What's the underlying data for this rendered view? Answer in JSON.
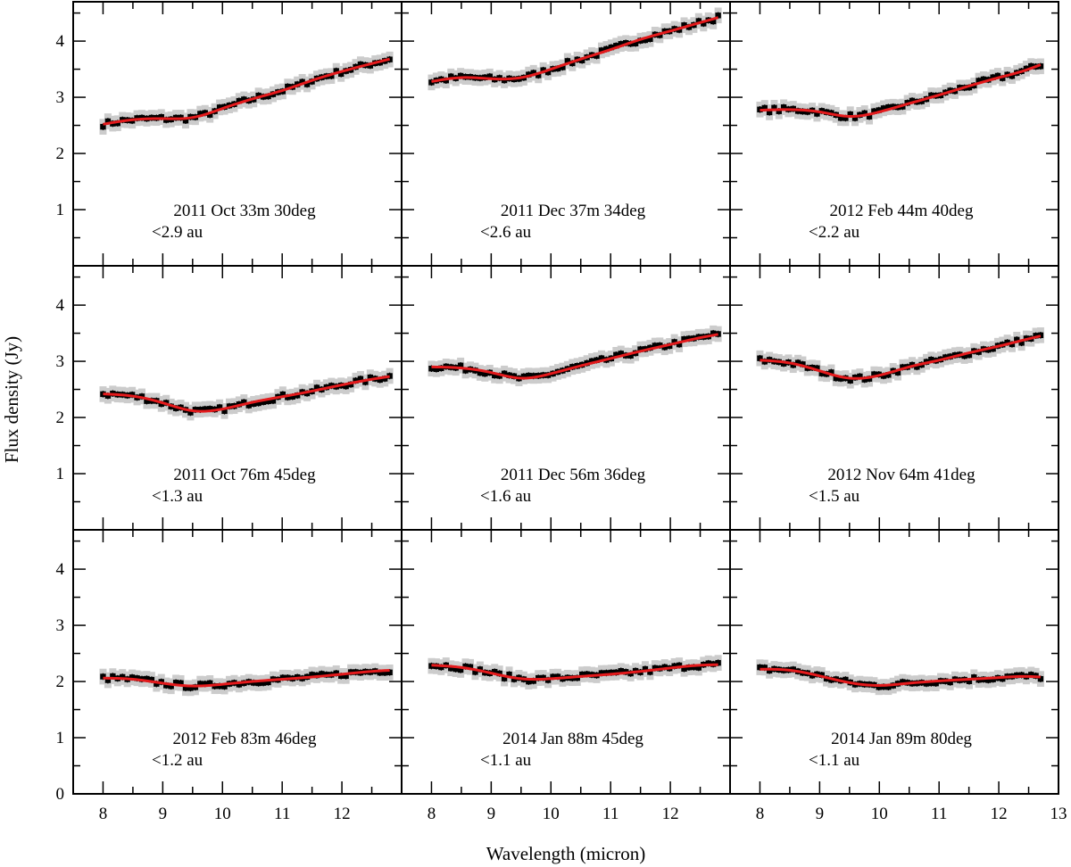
{
  "chart_data": {
    "type": "line",
    "xlabel": "Wavelength (micron)",
    "ylabel": "Flux density (Jy)",
    "xlim": [
      7.5,
      13.0
    ],
    "ylim": [
      0,
      4.7
    ],
    "x_ticks": [
      "8",
      "9",
      "10",
      "11",
      "12",
      "13"
    ],
    "y_ticks": [
      "0",
      "1",
      "2",
      "3",
      "4"
    ],
    "colors": {
      "model": "#e41a1c",
      "data": "#000000",
      "error_band": "#cccccc"
    },
    "panels": [
      {
        "title": "2011 Oct 33m 30deg",
        "limit": "<2.9 au",
        "model_x": [
          8.0,
          8.5,
          9.0,
          9.5,
          10.0,
          10.5,
          11.0,
          11.5,
          12.0,
          12.5,
          12.8
        ],
        "model_y": [
          2.52,
          2.6,
          2.62,
          2.64,
          2.8,
          2.97,
          3.12,
          3.3,
          3.46,
          3.6,
          3.68
        ]
      },
      {
        "title": "2011 Dec 37m 34deg",
        "limit": "<2.6 au",
        "model_x": [
          8.0,
          8.5,
          9.0,
          9.5,
          10.0,
          10.5,
          11.0,
          11.5,
          12.0,
          12.5,
          12.8
        ],
        "model_y": [
          3.28,
          3.35,
          3.33,
          3.35,
          3.5,
          3.68,
          3.85,
          4.03,
          4.18,
          4.33,
          4.42
        ]
      },
      {
        "title": "2012 Feb 44m 40deg",
        "limit": "<2.2 au",
        "model_x": [
          8.0,
          8.5,
          9.0,
          9.5,
          10.0,
          10.5,
          11.0,
          11.5,
          12.0,
          12.5,
          12.7
        ],
        "model_y": [
          2.77,
          2.78,
          2.74,
          2.66,
          2.74,
          2.89,
          3.04,
          3.2,
          3.35,
          3.5,
          3.58
        ]
      },
      {
        "title": "2011 Oct 76m 45deg",
        "limit": "<1.3 au",
        "model_x": [
          8.0,
          8.5,
          9.0,
          9.5,
          10.0,
          10.5,
          11.0,
          11.5,
          12.0,
          12.5,
          12.8
        ],
        "model_y": [
          2.42,
          2.38,
          2.26,
          2.12,
          2.15,
          2.27,
          2.37,
          2.47,
          2.58,
          2.68,
          2.73
        ]
      },
      {
        "title": "2011 Dec 56m 36deg",
        "limit": "<1.6 au",
        "model_x": [
          8.0,
          8.5,
          9.0,
          9.5,
          10.0,
          10.5,
          11.0,
          11.5,
          12.0,
          12.5,
          12.8
        ],
        "model_y": [
          2.9,
          2.88,
          2.8,
          2.7,
          2.78,
          2.92,
          3.05,
          3.18,
          3.3,
          3.42,
          3.48
        ]
      },
      {
        "title": "2012 Nov 64m 41deg",
        "limit": "<1.5 au",
        "model_x": [
          8.0,
          8.5,
          9.0,
          9.5,
          10.0,
          10.5,
          11.0,
          11.5,
          12.0,
          12.5,
          12.7
        ],
        "model_y": [
          3.02,
          2.97,
          2.83,
          2.7,
          2.75,
          2.9,
          3.02,
          3.15,
          3.27,
          3.4,
          3.45
        ]
      },
      {
        "title": "2012 Feb 83m 46deg",
        "limit": "<1.2 au",
        "model_x": [
          8.0,
          8.5,
          9.0,
          9.5,
          10.0,
          10.5,
          11.0,
          11.5,
          12.0,
          12.5,
          12.8
        ],
        "model_y": [
          2.06,
          2.04,
          1.97,
          1.92,
          1.95,
          2.0,
          2.04,
          2.08,
          2.13,
          2.18,
          2.2
        ]
      },
      {
        "title": "2014 Jan 88m 45deg",
        "limit": "<1.1 au",
        "model_x": [
          8.0,
          8.5,
          9.0,
          9.5,
          10.0,
          10.5,
          11.0,
          11.5,
          12.0,
          12.5,
          12.8
        ],
        "model_y": [
          2.29,
          2.25,
          2.15,
          2.05,
          2.05,
          2.09,
          2.13,
          2.18,
          2.24,
          2.29,
          2.3
        ]
      },
      {
        "title": "2014 Jan 89m 80deg",
        "limit": "<1.1 au",
        "model_x": [
          8.0,
          8.5,
          9.0,
          9.5,
          10.0,
          10.5,
          11.0,
          11.5,
          12.0,
          12.5,
          12.7
        ],
        "model_y": [
          2.22,
          2.2,
          2.1,
          1.98,
          1.93,
          1.97,
          2.01,
          2.04,
          2.07,
          2.09,
          2.08
        ]
      }
    ]
  }
}
